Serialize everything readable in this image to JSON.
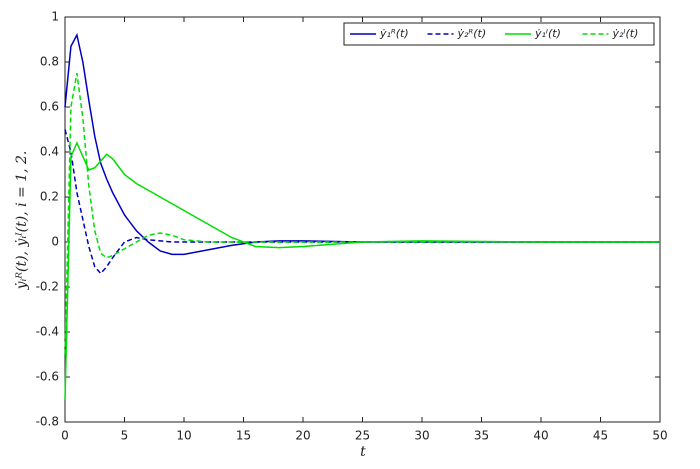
{
  "chart_data": {
    "type": "line",
    "x": [
      0,
      0.5,
      1,
      1.5,
      2,
      2.5,
      3,
      3.5,
      4,
      5,
      6,
      7,
      8,
      9,
      10,
      12,
      14,
      16,
      18,
      20,
      25,
      30,
      40,
      50
    ],
    "series": [
      {
        "name": "ẏ₁ᴿ(t)",
        "color": "#0000c0",
        "dash": false,
        "values": [
          0.6,
          0.87,
          0.92,
          0.8,
          0.63,
          0.47,
          0.35,
          0.28,
          0.22,
          0.12,
          0.05,
          0.0,
          -0.04,
          -0.055,
          -0.055,
          -0.035,
          -0.015,
          0,
          0.005,
          0.005,
          0,
          0,
          0,
          0
        ]
      },
      {
        "name": "ẏ₂ᴿ(t)",
        "color": "#0000c0",
        "dash": true,
        "values": [
          0.5,
          0.4,
          0.22,
          0.1,
          -0.02,
          -0.11,
          -0.14,
          -0.11,
          -0.07,
          0.0,
          0.02,
          0.01,
          0.005,
          0,
          0,
          0,
          0,
          0,
          0,
          0,
          0,
          0,
          0,
          0
        ]
      },
      {
        "name": "ẏ₁ᴵ(t)",
        "color": "#00dd00",
        "dash": false,
        "values": [
          -0.7,
          0.38,
          0.44,
          0.38,
          0.32,
          0.33,
          0.36,
          0.39,
          0.37,
          0.3,
          0.26,
          0.23,
          0.2,
          0.17,
          0.14,
          0.08,
          0.02,
          -0.02,
          -0.025,
          -0.02,
          0.0,
          0.005,
          0,
          0
        ]
      },
      {
        "name": "ẏ₂ᴵ(t)",
        "color": "#00dd00",
        "dash": true,
        "values": [
          -0.5,
          0.6,
          0.75,
          0.55,
          0.25,
          0.05,
          -0.05,
          -0.07,
          -0.06,
          -0.03,
          0.0,
          0.03,
          0.04,
          0.03,
          0.01,
          0,
          0,
          0,
          0,
          0,
          0,
          0,
          0,
          0
        ]
      }
    ],
    "x_label": "t",
    "y_label": "ẏᵢᴿ(t), ẏᵢᴵ(t), i = 1, 2.",
    "xlim": [
      0,
      50
    ],
    "xticks": [
      0,
      5,
      10,
      15,
      20,
      25,
      30,
      35,
      40,
      45,
      50
    ],
    "ylim": [
      -0.8,
      1
    ],
    "yticks": [
      -0.8,
      -0.6,
      -0.4,
      -0.2,
      0,
      0.2,
      0.4,
      0.6,
      0.8,
      1
    ],
    "legend": "upper right"
  }
}
